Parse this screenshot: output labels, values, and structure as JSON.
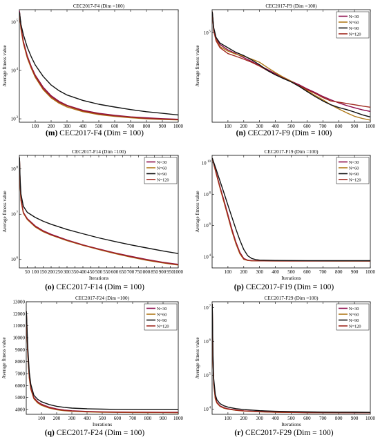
{
  "colors": {
    "N=30": "#8b0a4a",
    "N=60": "#b07a1a",
    "N=90": "#111111",
    "N=120": "#a0281e"
  },
  "chart_data": [
    {
      "type": "line",
      "title": "CEC2017-F4 (Dim =100)",
      "caption_letter": "(m)",
      "caption_text": "CEC2017-F4 (Dim = 100)",
      "xlabel": "",
      "ylabel": "Average fitness value",
      "yscale": "log",
      "xlim": [
        0,
        1000
      ],
      "ylim": [
        850,
        180000
      ],
      "xticks": [
        100,
        200,
        300,
        400,
        500,
        600,
        700,
        800,
        900,
        1000
      ],
      "yticks": [
        {
          "v": 1000,
          "l": "10",
          "e": "3"
        },
        {
          "v": 10000,
          "l": "10",
          "e": "4"
        },
        {
          "v": 100000,
          "l": "10",
          "e": "5"
        }
      ],
      "legend_position": "none",
      "x": [
        1,
        10,
        25,
        50,
        75,
        100,
        150,
        200,
        250,
        300,
        400,
        500,
        600,
        700,
        800,
        900,
        1000
      ],
      "series": [
        {
          "name": "N=30",
          "values": [
            170000,
            80000,
            40000,
            20000,
            12000,
            8000,
            4500,
            3000,
            2300,
            1900,
            1500,
            1300,
            1180,
            1100,
            1050,
            1010,
            980
          ]
        },
        {
          "name": "N=60",
          "values": [
            160000,
            72000,
            36000,
            18000,
            11000,
            7200,
            4000,
            2700,
            2100,
            1750,
            1400,
            1220,
            1120,
            1050,
            1000,
            970,
            950
          ]
        },
        {
          "name": "N=90",
          "values": [
            160000,
            90000,
            55000,
            30000,
            19000,
            13000,
            7500,
            5000,
            3800,
            3100,
            2400,
            2000,
            1750,
            1550,
            1400,
            1300,
            1200
          ]
        },
        {
          "name": "N=120",
          "values": [
            160000,
            75000,
            38000,
            19000,
            11500,
            7600,
            4200,
            2850,
            2200,
            1850,
            1450,
            1260,
            1150,
            1080,
            1020,
            990,
            960
          ]
        }
      ]
    },
    {
      "type": "line",
      "title": "CEC2017-F9 (Dim =100)",
      "caption_letter": "(n)",
      "caption_text": "CEC2017-F9 (Dim = 100)",
      "xlabel": "",
      "ylabel": "Average fitness value",
      "yscale": "log",
      "xlim": [
        0,
        1000
      ],
      "ylim": [
        8300,
        190000
      ],
      "xticks": [
        100,
        200,
        300,
        400,
        500,
        600,
        700,
        800,
        900,
        1000
      ],
      "yticks": [
        {
          "v": 100000,
          "l": "10",
          "e": "5"
        }
      ],
      "legend_position": "top-right",
      "x": [
        1,
        10,
        25,
        50,
        100,
        150,
        200,
        250,
        300,
        350,
        400,
        450,
        500,
        550,
        600,
        650,
        700,
        750,
        800,
        850,
        900,
        950,
        1000
      ],
      "series": [
        {
          "name": "N=30",
          "values": [
            180000,
            110000,
            85000,
            72000,
            62000,
            56000,
            50000,
            45000,
            40000,
            36000,
            32000,
            29000,
            26000,
            23500,
            21000,
            19000,
            17000,
            15500,
            14200,
            13200,
            12400,
            11700,
            11200
          ]
        },
        {
          "name": "N=60",
          "values": [
            180000,
            110000,
            82000,
            68000,
            60000,
            55000,
            52000,
            48000,
            44000,
            38000,
            33000,
            29000,
            26000,
            22500,
            20000,
            17500,
            15500,
            13500,
            12000,
            10800,
            9800,
            9200,
            8800
          ]
        },
        {
          "name": "N=90",
          "values": [
            180000,
            115000,
            88000,
            75000,
            66000,
            58000,
            53000,
            47000,
            41000,
            35000,
            31000,
            28000,
            25500,
            22500,
            19500,
            17000,
            15000,
            13500,
            12500,
            11800,
            11000,
            10200,
            9600
          ]
        },
        {
          "name": "N=120",
          "values": [
            180000,
            105000,
            80000,
            66000,
            56000,
            52000,
            48000,
            44000,
            39500,
            35000,
            31000,
            28500,
            25500,
            23000,
            20500,
            18500,
            16500,
            15000,
            14500,
            14000,
            13500,
            13000,
            12600
          ]
        }
      ]
    },
    {
      "type": "line",
      "title": "CEC2017-F14 (Dim =100)",
      "caption_letter": "(o)",
      "caption_text": "CEC2017-F14 (Dim = 100)",
      "xlabel": "Iterations",
      "ylabel": "Average fitness value",
      "yscale": "log",
      "xlim": [
        0,
        1000
      ],
      "ylim": [
        650000,
        200000000
      ],
      "xticks": [
        50,
        100,
        150,
        200,
        250,
        300,
        350,
        400,
        450,
        500,
        550,
        600,
        650,
        700,
        750,
        800,
        850,
        900,
        950,
        1000
      ],
      "yticks": [
        {
          "v": 1000000,
          "l": "10",
          "e": "6"
        },
        {
          "v": 10000000,
          "l": "10",
          "e": "7"
        },
        {
          "v": 100000000,
          "l": "10",
          "e": "8"
        }
      ],
      "legend_position": "top-right",
      "x": [
        1,
        5,
        10,
        25,
        50,
        100,
        150,
        200,
        300,
        400,
        500,
        600,
        700,
        800,
        900,
        1000
      ],
      "series": [
        {
          "name": "N=30",
          "values": [
            180000000,
            50000000,
            22000000,
            11000000,
            8000000,
            5500000,
            4300000,
            3600000,
            2700000,
            2100000,
            1700000,
            1400000,
            1180000,
            1000000,
            870000,
            780000
          ]
        },
        {
          "name": "N=60",
          "values": [
            180000000,
            45000000,
            20000000,
            10500000,
            7600000,
            5200000,
            4100000,
            3450000,
            2600000,
            2050000,
            1650000,
            1350000,
            1130000,
            960000,
            840000,
            750000
          ]
        },
        {
          "name": "N=90",
          "values": [
            180000000,
            60000000,
            28000000,
            15000000,
            11000000,
            8500000,
            7000000,
            6000000,
            4600000,
            3700000,
            3000000,
            2500000,
            2100000,
            1800000,
            1550000,
            1350000
          ]
        },
        {
          "name": "N=120",
          "values": [
            180000000,
            48000000,
            21000000,
            10800000,
            7800000,
            5350000,
            4200000,
            3500000,
            2650000,
            2080000,
            1680000,
            1380000,
            1150000,
            980000,
            855000,
            765000
          ]
        }
      ]
    },
    {
      "type": "line",
      "title": "CEC2017-F19 (Dim =100)",
      "caption_letter": "(p)",
      "caption_text": "CEC2017-F19 (Dim = 100)",
      "xlabel": "Iterations",
      "ylabel": "Average fitness value",
      "yscale": "log",
      "xlim": [
        0,
        1000
      ],
      "ylim": [
        2000,
        30000000000
      ],
      "xticks": [
        100,
        200,
        300,
        400,
        500,
        600,
        700,
        800,
        900,
        1000
      ],
      "yticks": [
        {
          "v": 10000,
          "l": "10",
          "e": "4"
        },
        {
          "v": 1000000,
          "l": "10",
          "e": "6"
        },
        {
          "v": 100000000,
          "l": "10",
          "e": "8"
        },
        {
          "v": 10000000000,
          "l": "10",
          "e": "10"
        }
      ],
      "legend_position": "top-right",
      "x": [
        1,
        25,
        50,
        75,
        100,
        125,
        150,
        175,
        200,
        225,
        250,
        275,
        300,
        400,
        500,
        600,
        700,
        800,
        900,
        1000
      ],
      "series": [
        {
          "name": "N=30",
          "values": [
            20000000000,
            2500000000,
            300000000,
            40000000,
            5000000,
            600000,
            90000,
            20000,
            8000,
            6200,
            5800,
            5700,
            5650,
            5600,
            5580,
            5570,
            5560,
            5550,
            5545,
            5540
          ]
        },
        {
          "name": "N=60",
          "values": [
            20000000000,
            2200000000,
            250000000,
            30000000,
            3800000,
            450000,
            70000,
            16000,
            7000,
            6000,
            5700,
            5650,
            5600,
            5580,
            5560,
            5550,
            5540,
            5535,
            5530,
            5525
          ]
        },
        {
          "name": "N=90",
          "values": [
            20000000000,
            4000000000,
            700000000,
            120000000,
            20000000,
            3500000,
            600000,
            120000,
            30000,
            12000,
            8000,
            6800,
            6300,
            6000,
            5900,
            5850,
            5820,
            5800,
            5790,
            5780
          ]
        },
        {
          "name": "N=120",
          "values": [
            20000000000,
            2300000000,
            270000000,
            35000000,
            4200000,
            500000,
            80000,
            18000,
            7500,
            6100,
            5750,
            5680,
            5630,
            5590,
            5570,
            5560,
            5550,
            5545,
            5540,
            5535
          ]
        }
      ]
    },
    {
      "type": "line",
      "title": "CEC2017-F24 (Dim =100)",
      "caption_letter": "(q)",
      "caption_text": "CEC2017-F24 (Dim = 100)",
      "xlabel": "Iterations",
      "ylabel": "Average fitness value",
      "yscale": "linear",
      "xlim": [
        0,
        1000
      ],
      "ylim": [
        3600,
        13000
      ],
      "xticks": [
        100,
        200,
        300,
        400,
        500,
        600,
        700,
        800,
        900,
        1000
      ],
      "yticks": [
        {
          "v": 4000,
          "l": "4000"
        },
        {
          "v": 5000,
          "l": "5000"
        },
        {
          "v": 6000,
          "l": "6000"
        },
        {
          "v": 7000,
          "l": "7000"
        },
        {
          "v": 8000,
          "l": "8000"
        },
        {
          "v": 9000,
          "l": "9000"
        },
        {
          "v": 10000,
          "l": "10000"
        },
        {
          "v": 11000,
          "l": "11000"
        },
        {
          "v": 12000,
          "l": "12000"
        },
        {
          "v": 13000,
          "l": "13000"
        }
      ],
      "legend_position": "top-right",
      "x": [
        1,
        5,
        10,
        20,
        30,
        50,
        75,
        100,
        150,
        200,
        250,
        300,
        400,
        500,
        600,
        700,
        800,
        900,
        1000
      ],
      "series": [
        {
          "name": "N=30",
          "values": [
            12200,
            10500,
            8800,
            6800,
            5800,
            5000,
            4650,
            4450,
            4200,
            4050,
            3960,
            3900,
            3840,
            3810,
            3790,
            3780,
            3775,
            3770,
            3765
          ]
        },
        {
          "name": "N=60",
          "values": [
            12200,
            10300,
            8600,
            6600,
            5700,
            4900,
            4550,
            4350,
            4120,
            3980,
            3900,
            3850,
            3800,
            3775,
            3760,
            3750,
            3745,
            3740,
            3735
          ]
        },
        {
          "name": "N=90",
          "values": [
            12200,
            10800,
            9200,
            7100,
            6100,
            5200,
            4850,
            4650,
            4420,
            4270,
            4180,
            4120,
            4060,
            4030,
            4010,
            4000,
            3995,
            3990,
            3985
          ]
        },
        {
          "name": "N=120",
          "values": [
            12200,
            10400,
            8700,
            6700,
            5750,
            4950,
            4600,
            4400,
            4160,
            4010,
            3930,
            3875,
            3820,
            3790,
            3775,
            3765,
            3760,
            3755,
            3750
          ]
        }
      ]
    },
    {
      "type": "line",
      "title": "CEC2017-F29 (Dim =100)",
      "caption_letter": "(r)",
      "caption_text": "CEC2017-F29 (Dim = 100)",
      "xlabel": "Iterations",
      "ylabel": "Average fitness value",
      "yscale": "log",
      "xlim": [
        0,
        1000
      ],
      "ylim": [
        7000,
        15000000
      ],
      "xticks": [
        100,
        200,
        300,
        400,
        500,
        600,
        700,
        800,
        900,
        1000
      ],
      "yticks": [
        {
          "v": 10000,
          "l": "10",
          "e": "4"
        },
        {
          "v": 100000,
          "l": "10",
          "e": "5"
        },
        {
          "v": 1000000,
          "l": "10",
          "e": "6"
        },
        {
          "v": 10000000,
          "l": "10",
          "e": "7"
        }
      ],
      "legend_position": "top-right",
      "x": [
        1,
        3,
        5,
        10,
        20,
        30,
        50,
        75,
        100,
        150,
        200,
        300,
        400,
        500,
        600,
        700,
        800,
        900,
        1000
      ],
      "series": [
        {
          "name": "N=30",
          "values": [
            13000000,
            2000000,
            400000,
            60000,
            22000,
            16000,
            12500,
            11000,
            10200,
            9400,
            8900,
            8400,
            8150,
            8000,
            7900,
            7850,
            7820,
            7800,
            7780
          ]
        },
        {
          "name": "N=60",
          "values": [
            13000000,
            1800000,
            350000,
            55000,
            20000,
            15000,
            12000,
            10600,
            9900,
            9200,
            8750,
            8300,
            8080,
            7950,
            7870,
            7820,
            7790,
            7770,
            7750
          ]
        },
        {
          "name": "N=90",
          "values": [
            13000000,
            2500000,
            550000,
            80000,
            27000,
            19000,
            14500,
            12500,
            11400,
            10300,
            9700,
            9000,
            8600,
            8400,
            8250,
            8150,
            8100,
            8050,
            8000
          ]
        },
        {
          "name": "N=120",
          "values": [
            13000000,
            1900000,
            380000,
            58000,
            21000,
            15500,
            12200,
            10800,
            10050,
            9300,
            8820,
            8350,
            8110,
            7970,
            7880,
            7830,
            7800,
            7780,
            7760
          ]
        }
      ]
    }
  ]
}
